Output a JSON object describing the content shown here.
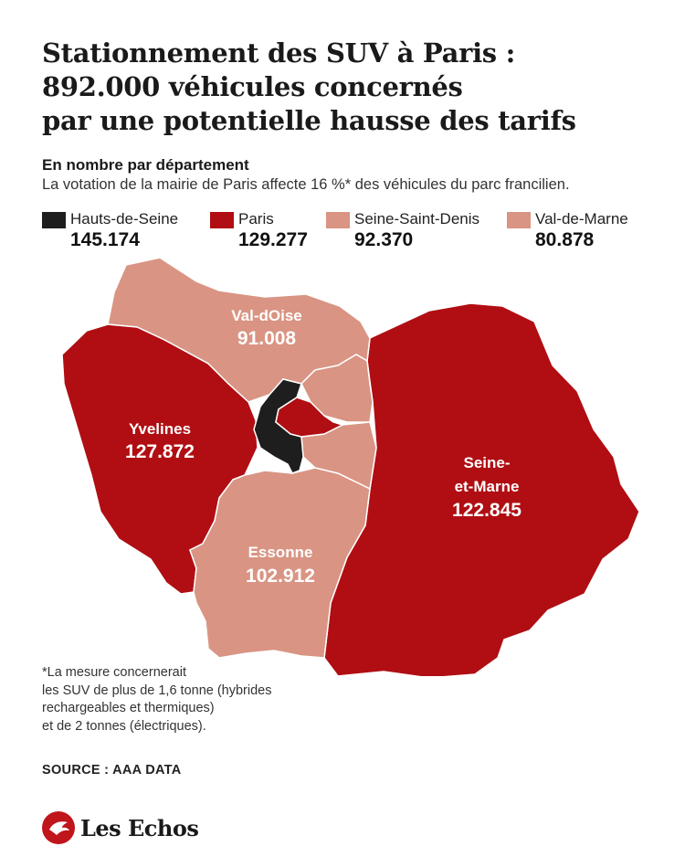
{
  "title_lines": [
    "Stationnement des SUV à Paris :",
    "892.000 véhicules concernés",
    "par une potentielle hausse des tarifs"
  ],
  "subtitle_bold": "En nombre par département",
  "subtitle": "La votation de la mairie de Paris affecte 16 %* des véhicules du parc francilien.",
  "colors": {
    "dark": "#1e1e1e",
    "red": "#b00e13",
    "salmon": "#d99483"
  },
  "legend": [
    {
      "name": "Hauts-de-Seine",
      "value": "145.174",
      "color": "#1e1e1e"
    },
    {
      "name": "Paris",
      "value": "129.277",
      "color": "#b00e13"
    },
    {
      "name": "Seine-Saint-Denis",
      "value": "92.370",
      "color": "#d99483"
    },
    {
      "name": "Val-de-Marne",
      "value": "80.878",
      "color": "#d99483"
    }
  ],
  "map": {
    "val_doise": {
      "name": "Val-dOise",
      "value": "91.008"
    },
    "yvelines": {
      "name": "Yvelines",
      "value": "127.872"
    },
    "seine_et_marne": {
      "name_line1": "Seine-",
      "name_line2": "et-Marne",
      "value": "122.845"
    },
    "essonne": {
      "name": "Essonne",
      "value": "102.912"
    }
  },
  "footnote_lines": [
    "*La mesure concernerait",
    "les SUV de plus de 1,6 tonne (hybrides",
    "rechargeables et thermiques)",
    "et de 2 tonnes (électriques)."
  ],
  "source": "SOURCE : AAA DATA",
  "logo": "Les Echos"
}
